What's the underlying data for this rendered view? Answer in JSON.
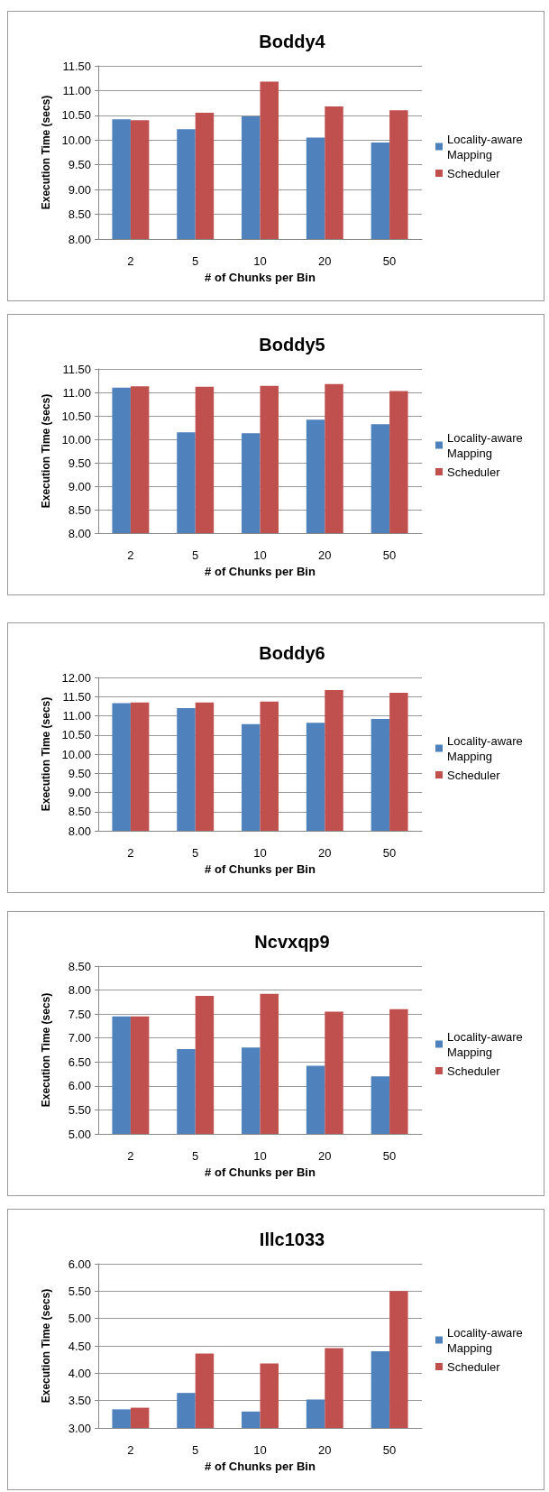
{
  "chart_data": [
    {
      "type": "bar",
      "title": "Boddy4",
      "xlabel": "# of Chunks per Bin",
      "ylabel": "Execution Time (secs)",
      "categories": [
        "2",
        "5",
        "10",
        "20",
        "50"
      ],
      "series": [
        {
          "name": "Locality-aware Mapping",
          "color": "#4f81bd",
          "values": [
            10.42,
            10.22,
            10.48,
            10.05,
            9.95
          ]
        },
        {
          "name": "Scheduler",
          "color": "#c0504d",
          "values": [
            10.4,
            10.55,
            11.18,
            10.68,
            10.6
          ]
        }
      ],
      "ylim": [
        8,
        11.5
      ],
      "yticks": [
        {
          "value": 8,
          "label": "8.00"
        },
        {
          "value": 8.5,
          "label": "8.50"
        },
        {
          "value": 9,
          "label": "9.00"
        },
        {
          "value": 9.5,
          "label": "9.50"
        },
        {
          "value": 10,
          "label": "10.00"
        },
        {
          "value": 10.5,
          "label": "10.50"
        },
        {
          "value": 11,
          "label": "11.00"
        },
        {
          "value": 11.5,
          "label": "11.50"
        }
      ],
      "grid": "y",
      "legend": "right"
    },
    {
      "type": "bar",
      "title": "Boddy5",
      "xlabel": "# of Chunks per Bin",
      "ylabel": "Execution Time (secs)",
      "categories": [
        "2",
        "5",
        "10",
        "20",
        "50"
      ],
      "series": [
        {
          "name": "Locality-aware Mapping",
          "color": "#4f81bd",
          "values": [
            11.1,
            10.15,
            10.13,
            10.42,
            10.32
          ]
        },
        {
          "name": "Scheduler",
          "color": "#c0504d",
          "values": [
            11.13,
            11.12,
            11.14,
            11.18,
            11.03
          ]
        }
      ],
      "ylim": [
        8,
        11.5
      ],
      "yticks": [
        {
          "value": 8,
          "label": "8.00"
        },
        {
          "value": 8.5,
          "label": "8.50"
        },
        {
          "value": 9,
          "label": "9.00"
        },
        {
          "value": 9.5,
          "label": "9.50"
        },
        {
          "value": 10,
          "label": "10.00"
        },
        {
          "value": 10.5,
          "label": "10.50"
        },
        {
          "value": 11,
          "label": "11.00"
        },
        {
          "value": 11.5,
          "label": "11.50"
        }
      ],
      "grid": "y",
      "legend": "right"
    },
    {
      "type": "bar",
      "title": "Boddy6",
      "xlabel": "# of Chunks per Bin",
      "ylabel": "Execution Time (secs)",
      "categories": [
        "2",
        "5",
        "10",
        "20",
        "50"
      ],
      "series": [
        {
          "name": "Locality-aware Mapping",
          "color": "#4f81bd",
          "values": [
            11.33,
            11.2,
            10.78,
            10.82,
            10.92
          ]
        },
        {
          "name": "Scheduler",
          "color": "#c0504d",
          "values": [
            11.35,
            11.35,
            11.37,
            11.67,
            11.6
          ]
        }
      ],
      "ylim": [
        8,
        12
      ],
      "yticks": [
        {
          "value": 8,
          "label": "8.00"
        },
        {
          "value": 8.5,
          "label": "8.50"
        },
        {
          "value": 9,
          "label": "9.00"
        },
        {
          "value": 9.5,
          "label": "9.50"
        },
        {
          "value": 10,
          "label": "10.00"
        },
        {
          "value": 10.5,
          "label": "10.50"
        },
        {
          "value": 11,
          "label": "11.00"
        },
        {
          "value": 11.5,
          "label": "11.50"
        },
        {
          "value": 12,
          "label": "12.00"
        }
      ],
      "grid": "y",
      "legend": "right"
    },
    {
      "type": "bar",
      "title": "Ncvxqp9",
      "xlabel": "# of Chunks per Bin",
      "ylabel": "Execution Time (secs)",
      "categories": [
        "2",
        "5",
        "10",
        "20",
        "50"
      ],
      "series": [
        {
          "name": "Locality-aware Mapping",
          "color": "#4f81bd",
          "values": [
            7.45,
            6.77,
            6.8,
            6.42,
            6.2
          ]
        },
        {
          "name": "Scheduler",
          "color": "#c0504d",
          "values": [
            7.45,
            7.88,
            7.92,
            7.55,
            7.6
          ]
        }
      ],
      "ylim": [
        5,
        8.5
      ],
      "yticks": [
        {
          "value": 5,
          "label": "5.00"
        },
        {
          "value": 5.5,
          "label": "5.50"
        },
        {
          "value": 6,
          "label": "6.00"
        },
        {
          "value": 6.5,
          "label": "6.50"
        },
        {
          "value": 7,
          "label": "7.00"
        },
        {
          "value": 7.5,
          "label": "7.50"
        },
        {
          "value": 8,
          "label": "8.00"
        },
        {
          "value": 8.5,
          "label": "8.50"
        }
      ],
      "grid": "y",
      "legend": "right"
    },
    {
      "type": "bar",
      "title": "Illc1033",
      "xlabel": "# of Chunks per Bin",
      "ylabel": "Execution Time (secs)",
      "categories": [
        "2",
        "5",
        "10",
        "20",
        "50"
      ],
      "series": [
        {
          "name": "Locality-aware Mapping",
          "color": "#4f81bd",
          "values": [
            3.34,
            3.64,
            3.3,
            3.52,
            4.4
          ]
        },
        {
          "name": "Scheduler",
          "color": "#c0504d",
          "values": [
            3.37,
            4.36,
            4.18,
            4.46,
            5.5
          ]
        }
      ],
      "ylim": [
        3,
        6
      ],
      "yticks": [
        {
          "value": 3,
          "label": "3.00"
        },
        {
          "value": 3.5,
          "label": "3.50"
        },
        {
          "value": 4,
          "label": "4.00"
        },
        {
          "value": 4.5,
          "label": "4.50"
        },
        {
          "value": 5,
          "label": "5.00"
        },
        {
          "value": 5.5,
          "label": "5.50"
        },
        {
          "value": 6,
          "label": "6.00"
        }
      ],
      "grid": "y",
      "legend": "right"
    }
  ]
}
